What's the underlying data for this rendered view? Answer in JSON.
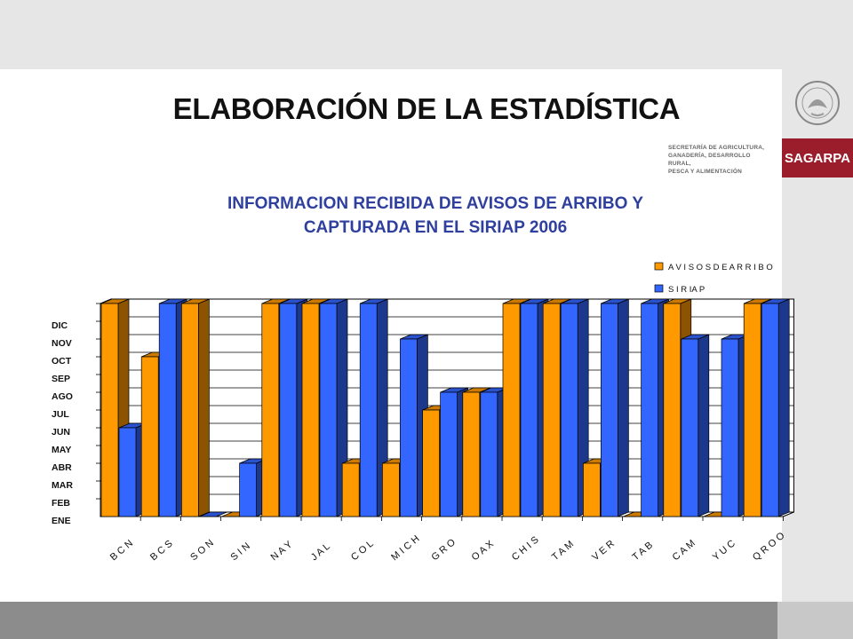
{
  "page": {
    "title": "ELABORACIÓN DE LA ESTADÍSTICA",
    "org_lines": [
      "SECRETARÍA DE AGRICULTURA,",
      "GANADERÍA, DESARROLLO RURAL,",
      "PESCA Y ALIMENTACIÓN"
    ],
    "brand": "SAGARPA"
  },
  "chart_data": {
    "type": "bar",
    "title_lines": [
      "INFORMACION RECIBIDA DE AVISOS DE ARRIBO Y",
      "CAPTURADA EN EL SIRIAP 2006"
    ],
    "categories": [
      "BCN",
      "BCS",
      "SON",
      "SIN",
      "NAY",
      "JAL",
      "COL",
      "MICH",
      "GRO",
      "OAX",
      "CHIS",
      "TAM",
      "VER",
      "TAB",
      "CAM",
      "YUC",
      "QROO"
    ],
    "category_labels": [
      "B C N",
      "B C S",
      "S O N",
      "S I N",
      "N A Y",
      "J A L",
      "C O L",
      "M I C H",
      "G R O",
      "O A X",
      "C H I S",
      "T A M",
      "V E R",
      "T A B",
      "C A M",
      "Y U C",
      "Q R O O"
    ],
    "y_ticks": [
      "ENE",
      "FEB",
      "MAR",
      "ABR",
      "MAY",
      "JUN",
      "JUL",
      "AGO",
      "SEP",
      "OCT",
      "NOV",
      "DIC"
    ],
    "series": [
      {
        "name": "A V I S O S   D E   A R R I B O",
        "color": "#ff9900",
        "values": [
          12,
          9,
          12,
          0,
          12,
          12,
          3,
          3,
          6,
          7,
          12,
          12,
          3,
          0,
          12,
          0,
          12
        ]
      },
      {
        "name": "S I R IA P",
        "color": "#3366ff",
        "values": [
          5,
          12,
          0,
          3,
          12,
          12,
          12,
          10,
          7,
          7,
          12,
          12,
          12,
          12,
          10,
          10,
          12
        ]
      }
    ],
    "ylim": [
      0,
      12
    ],
    "grid": true,
    "legend": "top-right"
  }
}
